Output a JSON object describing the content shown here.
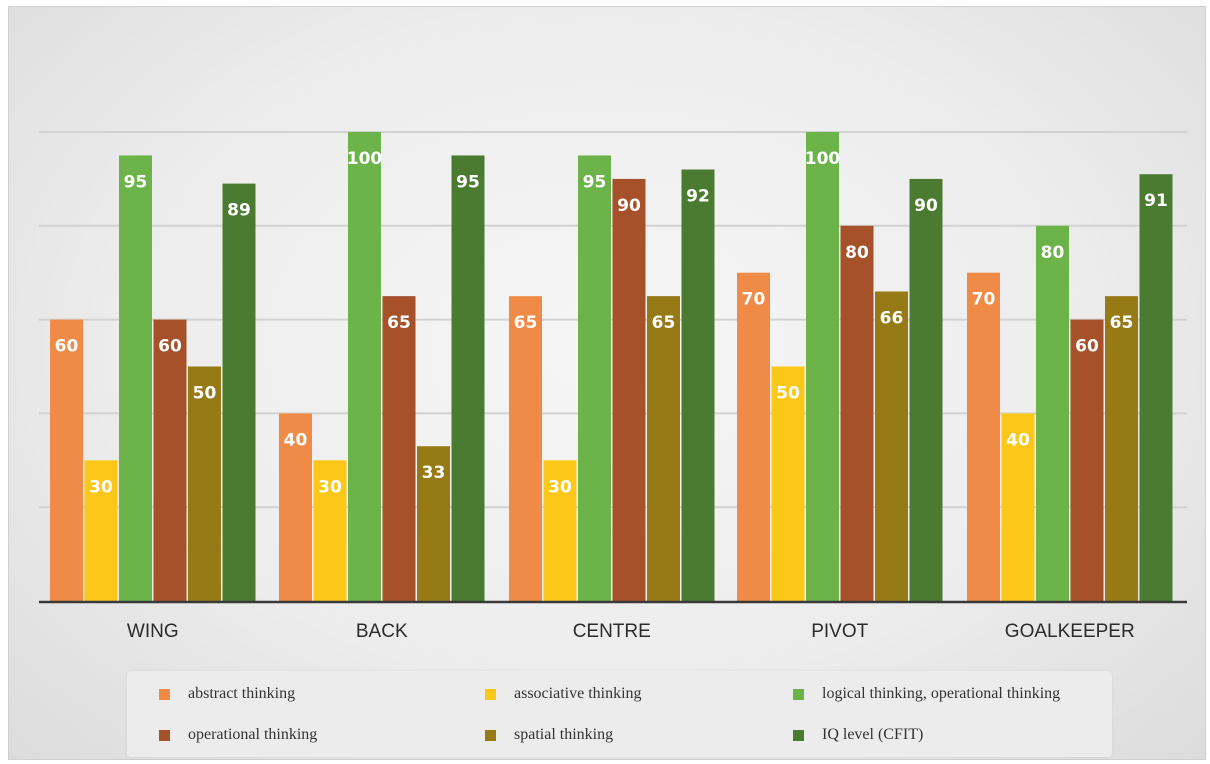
{
  "chart_data": {
    "type": "bar",
    "title": "",
    "xlabel": "",
    "ylabel": "",
    "ylim": [
      0,
      100
    ],
    "grid": true,
    "legend_position": "bottom",
    "categories": [
      "WING",
      "BACK",
      "CENTRE",
      "PIVOT",
      "GOALKEEPER"
    ],
    "series": [
      {
        "name": "abstract thinking",
        "color": "#f08a47",
        "values": [
          60,
          40,
          65,
          70,
          70
        ]
      },
      {
        "name": "associative thinking",
        "color": "#fbc81a",
        "values": [
          30,
          30,
          30,
          50,
          40
        ]
      },
      {
        "name": "logical thinking, operational thinking",
        "color": "#6cb449",
        "values": [
          95,
          100,
          95,
          100,
          80
        ]
      },
      {
        "name": "operational thinking",
        "color": "#a6512a",
        "values": [
          60,
          65,
          90,
          80,
          60
        ]
      },
      {
        "name": "spatial thinking",
        "color": "#967a16",
        "values": [
          50,
          33,
          65,
          66,
          65
        ]
      },
      {
        "name": "IQ level (CFIT)",
        "color": "#4b7b31",
        "values": [
          89,
          95,
          92,
          90,
          91
        ]
      }
    ]
  },
  "legend": {
    "items": [
      {
        "label": "abstract thinking"
      },
      {
        "label": "associative thinking"
      },
      {
        "label": "logical thinking, operational thinking"
      },
      {
        "label": "operational thinking"
      },
      {
        "label": "spatial thinking"
      },
      {
        "label": "IQ level (CFIT)"
      }
    ]
  }
}
